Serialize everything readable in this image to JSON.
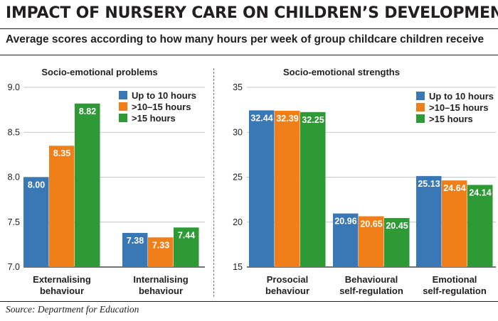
{
  "title": "IMPACT OF NURSERY CARE ON CHILDREN’S DEVELOPMENT",
  "subtitle": "Average scores according to how many hours per week of group childcare children receive",
  "source": "Source: Department for Education",
  "colors": {
    "series": [
      "#3a78b5",
      "#f07f1a",
      "#2e9a35"
    ]
  },
  "chart_data": [
    {
      "type": "bar",
      "title": "Socio-emotional problems",
      "categories": [
        [
          "Externalising",
          "behaviour"
        ],
        [
          "Internalising",
          "behaviour"
        ]
      ],
      "series": [
        {
          "name": "Up to 10 hours",
          "values": [
            8.0,
            7.38
          ]
        },
        {
          "name": ">10–15 hours",
          "values": [
            8.35,
            7.33
          ]
        },
        {
          "name": ">15 hours",
          "values": [
            8.82,
            7.44
          ]
        }
      ],
      "data_labels": [
        [
          "8.00",
          "7.38"
        ],
        [
          "8.35",
          "7.33"
        ],
        [
          "8.82",
          "7.44"
        ]
      ],
      "ylim": [
        7.0,
        9.0
      ],
      "yticks": [
        "7.0",
        "7.5",
        "8.0",
        "8.5",
        "9.0"
      ],
      "grid": true,
      "legend": "top-right"
    },
    {
      "type": "bar",
      "title": "Socio-emotional strengths",
      "categories": [
        [
          "Prosocial",
          "behaviour"
        ],
        [
          "Behavioural",
          "self-regulation"
        ],
        [
          "Emotional",
          "self-regulation"
        ]
      ],
      "series": [
        {
          "name": "Up to 10 hours",
          "values": [
            32.44,
            20.96,
            25.13
          ]
        },
        {
          "name": ">10–15 hours",
          "values": [
            32.39,
            20.65,
            24.64
          ]
        },
        {
          "name": ">15 hours",
          "values": [
            32.25,
            20.45,
            24.14
          ]
        }
      ],
      "data_labels": [
        [
          "32.44",
          "20.96",
          "25.13"
        ],
        [
          "32.39",
          "20.65",
          "24.64"
        ],
        [
          "32.25",
          "20.45",
          "24.14"
        ]
      ],
      "ylim": [
        15,
        35
      ],
      "yticks": [
        "15",
        "20",
        "25",
        "30",
        "35"
      ],
      "grid": true,
      "legend": "top-right"
    }
  ]
}
